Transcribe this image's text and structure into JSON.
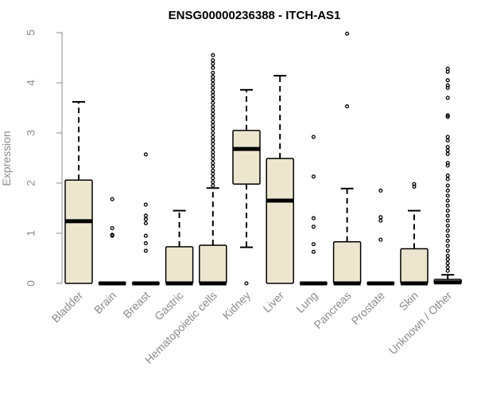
{
  "chart_data": {
    "type": "boxplot",
    "title": "ENSG00000236388 - ITCH-AS1",
    "xlabel": "",
    "ylabel": "Expression",
    "ylim": [
      0,
      5
    ],
    "yticks": [
      0,
      1,
      2,
      3,
      4,
      5
    ],
    "categories": [
      "Bladder",
      "Brain",
      "Breast",
      "Gastric",
      "Hematopoietic cells",
      "Kidney",
      "Liver",
      "Lung",
      "Pancreas",
      "Prostate",
      "Skin",
      "Unknown / Other"
    ],
    "box_fill": "#ede6cf",
    "box_stroke": "#000000",
    "axis_color": "#8a8a8a",
    "series": [
      {
        "name": "Bladder",
        "q1": 0.0,
        "median": 1.24,
        "q3": 2.06,
        "whisker_low": 0.0,
        "whisker_high": 3.62,
        "outliers": []
      },
      {
        "name": "Brain",
        "q1": 0.0,
        "median": 0.0,
        "q3": 0.0,
        "whisker_low": 0.0,
        "whisker_high": 0.0,
        "outliers": [
          1.68,
          1.1,
          0.97,
          0.95
        ]
      },
      {
        "name": "Breast",
        "q1": 0.0,
        "median": 0.0,
        "q3": 0.0,
        "whisker_low": 0.0,
        "whisker_high": 0.0,
        "outliers": [
          2.57,
          1.57,
          1.35,
          1.28,
          1.2,
          0.95,
          0.8,
          0.65
        ]
      },
      {
        "name": "Gastric",
        "q1": 0.0,
        "median": 0.0,
        "q3": 0.73,
        "whisker_low": 0.0,
        "whisker_high": 1.45,
        "outliers": []
      },
      {
        "name": "Hematopoietic cells",
        "q1": 0.0,
        "median": 0.0,
        "q3": 0.76,
        "whisker_low": 0.0,
        "whisker_high": 1.9,
        "outliers": [
          4.55,
          4.45,
          4.38,
          4.3,
          4.2,
          4.12,
          4.05,
          3.98,
          3.9,
          3.82,
          3.75,
          3.68,
          3.6,
          3.52,
          3.45,
          3.38,
          3.3,
          3.22,
          3.15,
          3.08,
          3.0,
          2.92,
          2.85,
          2.78,
          2.7,
          2.62,
          2.55,
          2.48,
          2.4,
          2.33,
          2.25,
          2.18,
          2.1,
          2.02,
          1.95
        ]
      },
      {
        "name": "Kidney",
        "q1": 1.98,
        "median": 2.68,
        "q3": 3.05,
        "whisker_low": 0.72,
        "whisker_high": 3.86,
        "outliers": [
          0.0
        ]
      },
      {
        "name": "Liver",
        "q1": 0.0,
        "median": 1.65,
        "q3": 2.49,
        "whisker_low": 0.0,
        "whisker_high": 4.14,
        "outliers": []
      },
      {
        "name": "Lung",
        "q1": 0.0,
        "median": 0.0,
        "q3": 0.0,
        "whisker_low": 0.0,
        "whisker_high": 0.0,
        "outliers": [
          2.92,
          2.13,
          1.3,
          1.13,
          0.78,
          0.63
        ]
      },
      {
        "name": "Pancreas",
        "q1": 0.0,
        "median": 0.0,
        "q3": 0.83,
        "whisker_low": 0.0,
        "whisker_high": 1.89,
        "outliers": [
          4.98,
          3.53
        ]
      },
      {
        "name": "Prostate",
        "q1": 0.0,
        "median": 0.0,
        "q3": 0.0,
        "whisker_low": 0.0,
        "whisker_high": 0.0,
        "outliers": [
          1.85,
          1.32,
          1.25,
          0.87
        ]
      },
      {
        "name": "Skin",
        "q1": 0.0,
        "median": 0.0,
        "q3": 0.69,
        "whisker_low": 0.0,
        "whisker_high": 1.45,
        "outliers": [
          1.98,
          1.93
        ]
      },
      {
        "name": "Unknown / Other",
        "q1": 0.0,
        "median": 0.02,
        "q3": 0.08,
        "whisker_low": 0.0,
        "whisker_high": 0.17,
        "outliers": [
          4.28,
          4.22,
          4.05,
          3.95,
          3.9,
          3.7,
          3.35,
          3.32,
          2.92,
          2.85,
          2.72,
          2.65,
          2.58,
          2.4,
          2.35,
          2.15,
          2.08,
          1.95,
          1.85,
          1.75,
          1.65,
          1.55,
          1.45,
          1.35,
          1.25,
          1.15,
          1.05,
          0.95,
          0.85,
          0.75,
          0.65,
          0.55,
          0.48,
          0.4,
          0.32,
          0.25
        ]
      }
    ]
  }
}
